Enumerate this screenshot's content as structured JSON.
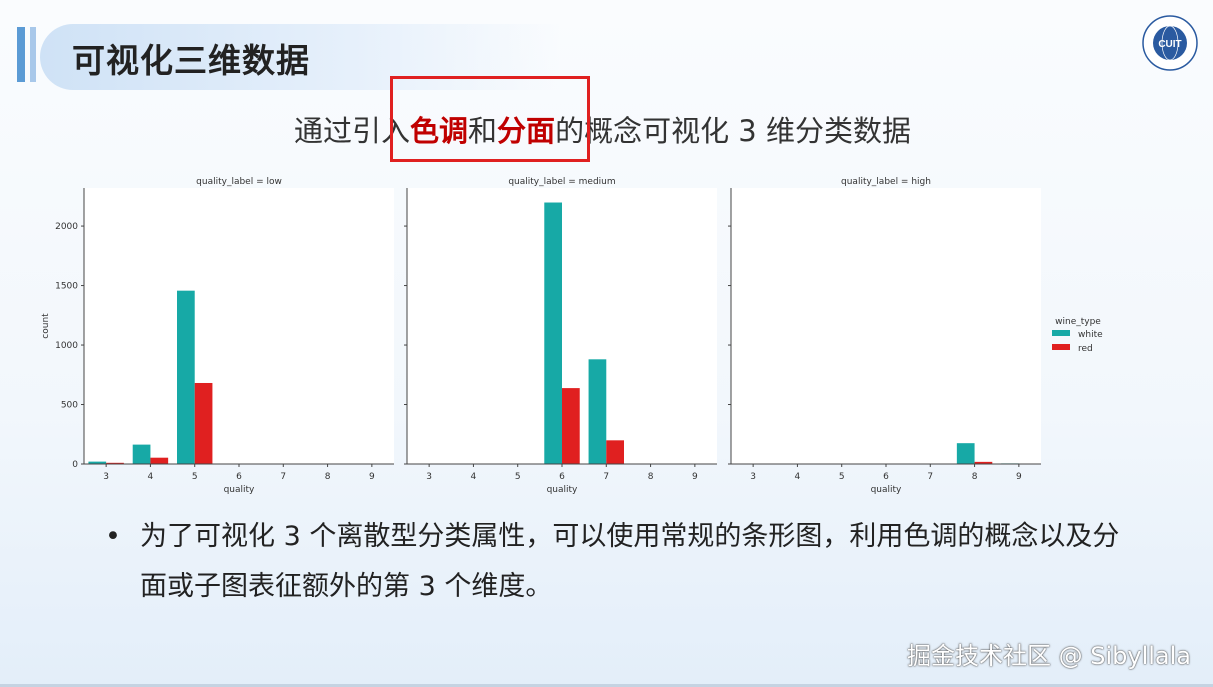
{
  "slide": {
    "title": "可视化三维数据",
    "subtitle_parts": [
      "通过引入",
      "色调",
      "和",
      "分面",
      "的概念可视化 3 维分类数据"
    ],
    "bullet": "为了可视化 3 个离散型分类属性，可以使用常规的条形图，利用色调的概念以及分面或子图表征额外的第 3 个维度。",
    "logo_text": "CUIT",
    "watermark": "掘金技术社区 @ Sibyllala"
  },
  "chart_data": {
    "type": "bar",
    "ylabel": "count",
    "ylim": [
      0,
      2320
    ],
    "yticks": [
      0,
      500,
      1000,
      1500,
      2000
    ],
    "categories": [
      "3",
      "4",
      "5",
      "6",
      "7",
      "8",
      "9"
    ],
    "legend": {
      "title": "wine_type",
      "placement": "right",
      "entries": [
        "white",
        "red"
      ]
    },
    "colors": {
      "white": "#17a9a6",
      "red": "#e02020"
    },
    "panels": [
      {
        "title": "quality_label = low",
        "xlabel": "quality",
        "series": [
          {
            "name": "white",
            "values": [
              20,
              163,
              1457,
              0,
              0,
              0,
              0
            ]
          },
          {
            "name": "red",
            "values": [
              10,
              53,
              681,
              0,
              0,
              0,
              0
            ]
          }
        ]
      },
      {
        "title": "quality_label = medium",
        "xlabel": "quality",
        "series": [
          {
            "name": "white",
            "values": [
              0,
              0,
              0,
              2198,
              880,
              0,
              0
            ]
          },
          {
            "name": "red",
            "values": [
              0,
              0,
              0,
              638,
              199,
              0,
              0
            ]
          }
        ]
      },
      {
        "title": "quality_label = high",
        "xlabel": "quality",
        "series": [
          {
            "name": "white",
            "values": [
              0,
              0,
              0,
              0,
              0,
              175,
              5
            ]
          },
          {
            "name": "red",
            "values": [
              0,
              0,
              0,
              0,
              0,
              18,
              0
            ]
          }
        ]
      }
    ]
  }
}
